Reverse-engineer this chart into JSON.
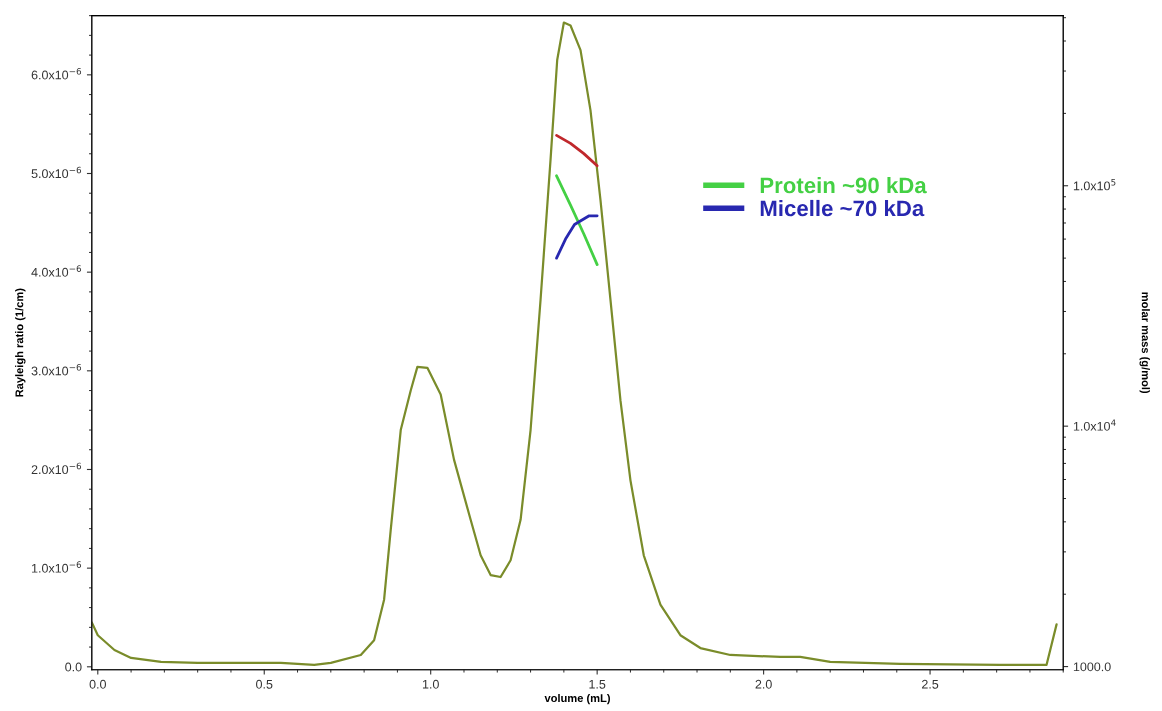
{
  "chart_data": {
    "type": "line",
    "xlabel": "volume (mL)",
    "ylabel": "Rayleigh ratio (1/cm)",
    "y2label": "molar mass (g/mol)",
    "xlim": [
      -0.018,
      2.9
    ],
    "xticks": [
      {
        "value": 0,
        "label": "0.0"
      },
      0.5,
      {
        "value": 1,
        "label": "1.0"
      },
      1.5,
      {
        "value": 2,
        "label": "2.0"
      },
      2.5
    ],
    "ylim": [
      -3e-08,
      6.6e-06
    ],
    "yticks": [
      {
        "value": 0,
        "label": "0.0"
      },
      {
        "value": 1e-06,
        "label": "1.0x10$^{−6}$"
      },
      {
        "value": 2e-06,
        "label": "2.0x10$^{−6}$"
      },
      {
        "value": 3e-06,
        "label": "3.0x10$^{−6}$"
      },
      {
        "value": 4e-06,
        "label": "4.0x10$^{−6}$"
      },
      {
        "value": 5e-06,
        "label": "5.0x10$^{−6}$"
      },
      {
        "value": 6e-06,
        "label": "6.0x10$^{−6}$"
      }
    ],
    "log": "y2",
    "y2lim": [
      970,
      510000
    ],
    "y2ticks": [
      {
        "value": 1000,
        "label": "1000.0"
      },
      {
        "value": 10000,
        "label": "1.0x10$^{4}$"
      },
      {
        "value": 100000,
        "label": "1.0x10$^{5}$"
      }
    ],
    "grid": false,
    "legend": "right",
    "marker": "none",
    "line_style": "solid",
    "series": [
      {
        "color": "#7a8c2a",
        "x": [
          -0.018,
          0.0,
          0.05,
          0.1,
          0.19,
          0.3,
          0.45,
          0.55,
          0.65,
          0.7,
          0.79,
          0.83,
          0.86,
          0.88,
          0.91,
          0.94,
          0.96,
          0.99,
          1.03,
          1.07,
          1.12,
          1.15,
          1.18,
          1.21,
          1.24,
          1.27,
          1.3,
          1.33,
          1.36,
          1.38,
          1.4,
          1.42,
          1.45,
          1.48,
          1.51,
          1.54,
          1.57,
          1.6,
          1.64,
          1.69,
          1.75,
          1.81,
          1.9,
          2.05,
          2.11,
          2.2,
          2.41,
          2.71,
          2.85,
          2.88
        ],
        "values": [
          4.5e-07,
          3.2e-07,
          1.7e-07,
          9e-08,
          5e-08,
          4e-08,
          4e-08,
          4e-08,
          2e-08,
          4e-08,
          1.2e-07,
          2.7e-07,
          6.8e-07,
          1.39e-06,
          2.4e-06,
          2.8e-06,
          3.04e-06,
          3.03e-06,
          2.76e-06,
          2.1e-06,
          1.49e-06,
          1.13e-06,
          9.3e-07,
          9.1e-07,
          1.08e-06,
          1.49e-06,
          2.4e-06,
          3.72e-06,
          5.14e-06,
          6.15e-06,
          6.53e-06,
          6.5e-06,
          6.25e-06,
          5.64e-06,
          4.73e-06,
          3.72e-06,
          2.7e-06,
          1.89e-06,
          1.13e-06,
          6.3e-07,
          3.2e-07,
          1.9e-07,
          1.2e-07,
          1e-07,
          1e-07,
          5e-08,
          3e-08,
          2e-08,
          2e-08,
          4.3e-07
        ]
      },
      {
        "color": "#c0282c",
        "axis": "y2",
        "x": [
          1.378,
          1.42,
          1.46,
          1.5
        ],
        "values": [
          162000,
          150000,
          136000,
          121000
        ]
      },
      {
        "name": "Protein ~90 kDa",
        "color": "#44d044",
        "axis": "y2",
        "x": [
          1.378,
          1.42,
          1.46,
          1.5
        ],
        "values": [
          110000,
          83000,
          63000,
          47000
        ]
      },
      {
        "name": "Micelle ~70 kDa",
        "color": "#2828b0",
        "axis": "y2",
        "x": [
          1.378,
          1.405,
          1.432,
          1.476,
          1.5
        ],
        "values": [
          50000,
          60000,
          69000,
          75000,
          75000
        ]
      }
    ]
  }
}
